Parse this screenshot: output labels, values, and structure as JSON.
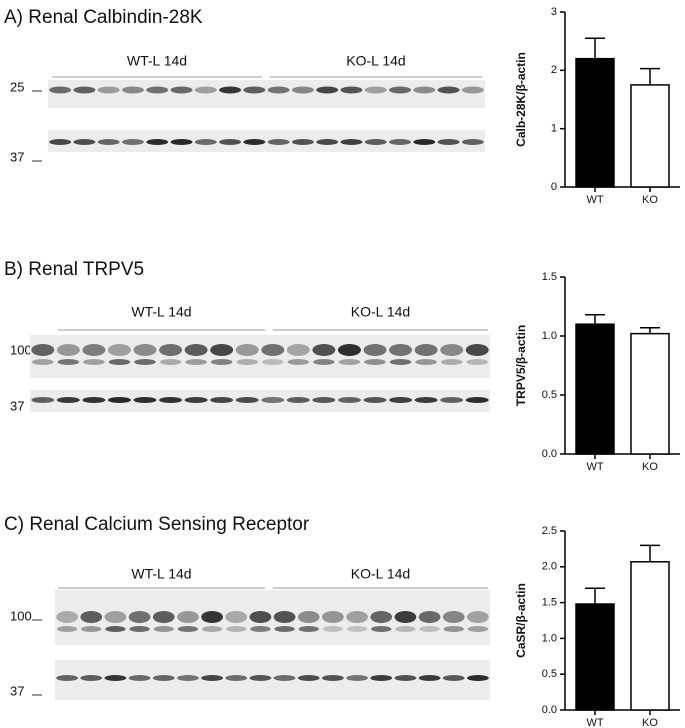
{
  "chart_data": [
    {
      "type": "bar",
      "title": "A) Renal Calbindin-28K",
      "blot_groups": [
        "WT-L 14d",
        "KO-L 14d"
      ],
      "blot_markers": [
        "25",
        "37"
      ],
      "y_label": "Calb-28K/β-actin",
      "categories": [
        "WT",
        "KO"
      ],
      "values": [
        2.2,
        1.75
      ],
      "errors": [
        0.35,
        0.28
      ],
      "colors": [
        "#000000",
        "#ffffff"
      ],
      "ylim": [
        0,
        3
      ],
      "yticks": [
        0,
        1,
        2,
        3
      ]
    },
    {
      "type": "bar",
      "title": "B) Renal TRPV5",
      "blot_groups": [
        "WT-L 14d",
        "KO-L 14d"
      ],
      "blot_markers": [
        "100",
        "37"
      ],
      "y_label": "TRPV5/β-actin",
      "categories": [
        "WT",
        "KO"
      ],
      "values": [
        1.1,
        1.02
      ],
      "errors": [
        0.08,
        0.05
      ],
      "colors": [
        "#000000",
        "#ffffff"
      ],
      "ylim": [
        0,
        1.5
      ],
      "yticks": [
        {
          "value": 0,
          "label": "0.0"
        },
        {
          "value": 0.5,
          "label": "0.5"
        },
        {
          "value": 1,
          "label": "1.0"
        },
        {
          "value": 1.5,
          "label": "1.5"
        }
      ]
    },
    {
      "type": "bar",
      "title": "C) Renal Calcium Sensing Receptor",
      "blot_groups": [
        "WT-L 14d",
        "KO-L 14d"
      ],
      "blot_markers": [
        "100",
        "37"
      ],
      "y_label": "CaSR/β-actin",
      "categories": [
        "WT",
        "KO"
      ],
      "values": [
        1.48,
        2.07
      ],
      "errors": [
        0.22,
        0.23
      ],
      "colors": [
        "#000000",
        "#ffffff"
      ],
      "ylim": [
        0,
        2.5
      ],
      "yticks": [
        {
          "value": 0,
          "label": "0.0"
        },
        {
          "value": 0.5,
          "label": "0.5"
        },
        {
          "value": 1,
          "label": "1.0"
        },
        {
          "value": 1.5,
          "label": "1.5"
        },
        {
          "value": 2,
          "label": "2.0"
        },
        {
          "value": 2.5,
          "label": "2.5"
        }
      ]
    }
  ]
}
